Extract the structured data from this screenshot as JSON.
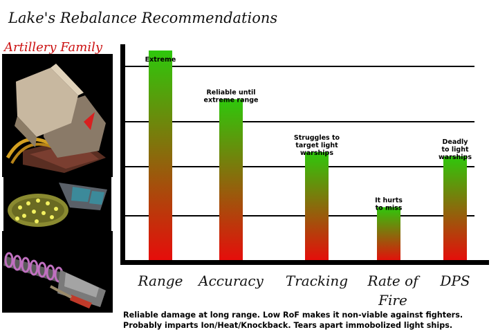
{
  "title": "Lake's Rebalance Recommendations",
  "subtitle": "Artillery Family",
  "footer": {
    "line1": "Reliable damage at long range. Low RoF makes it non-viable against fighters.",
    "line2": "Probably imparts Ion/Heat/Knockback. Tears apart immobolized light ships."
  },
  "images": [
    {
      "icon": "artillery-turret-icon"
    },
    {
      "icon": "green-cluster-weapon-icon"
    },
    {
      "icon": "coiled-barrel-weapon-icon"
    }
  ],
  "colors": {
    "bar_top": "#2ec80c",
    "bar_bottom": "#e80b0b",
    "grid": "#000000",
    "subtitle": "#cc1111"
  },
  "chart_data": {
    "type": "bar",
    "title": "",
    "xlabel": "",
    "ylabel": "",
    "ylim": [
      0,
      100
    ],
    "grid": true,
    "categories": [
      "Range",
      "Accuracy",
      "Tracking",
      "Rate of Fire",
      "DPS"
    ],
    "values": [
      100,
      77,
      52,
      26,
      50
    ],
    "annotations": [
      "Extreme",
      "Reliable until extreme range",
      "Struggles to target light warships",
      "It hurts to miss",
      "Deadly to light warships"
    ]
  }
}
